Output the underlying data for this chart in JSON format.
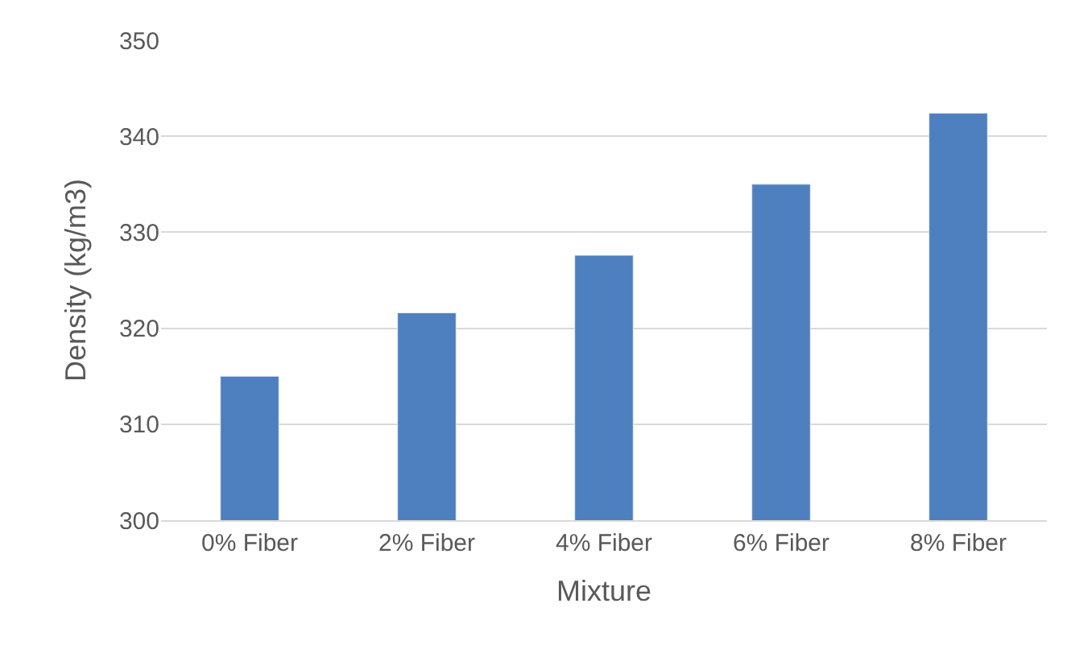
{
  "chart_data": {
    "type": "bar",
    "xlabel": "Mixture",
    "ylabel": "Density (kg/m3)",
    "categories": [
      "0% Fiber",
      "2% Fiber",
      "4% Fiber",
      "6% Fiber",
      "8% Fiber"
    ],
    "values": [
      315,
      321.6,
      327.6,
      335,
      342.4
    ],
    "color": "#4e7fbe",
    "ylim": [
      300,
      350
    ],
    "yticks": [
      300,
      310,
      320,
      330,
      340,
      350
    ],
    "grid": "y"
  }
}
